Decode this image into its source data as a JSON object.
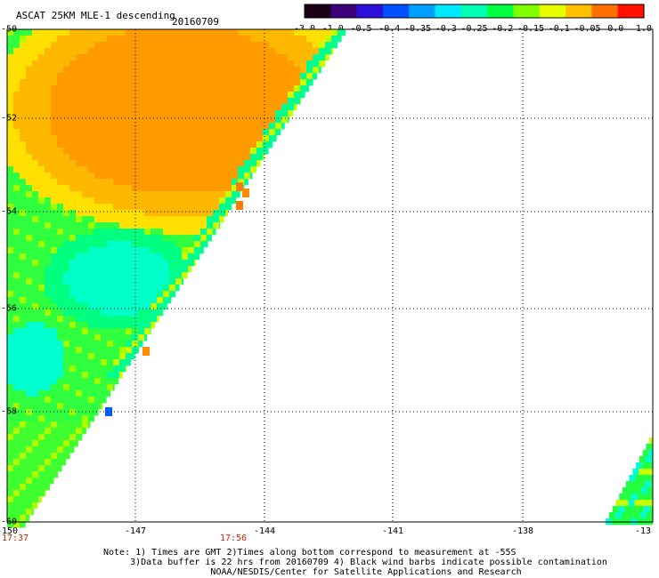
{
  "header": {
    "title": "ASCAT 25KM MLE-1 descending",
    "date": "20160709"
  },
  "colorbar": {
    "tick_labels": [
      "-3.0",
      "-1.0",
      "-0.5",
      "-0.4",
      "-0.35",
      "-0.3",
      "-0.25",
      "-0.2",
      "-0.15",
      "-0.1",
      "-0.05",
      "0.0",
      "1.0"
    ],
    "colors": [
      "#1a0015",
      "#3c007a",
      "#2a10d8",
      "#0050ff",
      "#00a0ff",
      "#00e8ff",
      "#00ffb0",
      "#00ff40",
      "#80ff00",
      "#e8ff00",
      "#ffc000",
      "#ff7000",
      "#ff1000"
    ]
  },
  "axes": {
    "lat_labels": [
      "-50",
      "-52",
      "-54",
      "-56",
      "-58",
      "-60"
    ],
    "lon_labels": [
      "-150",
      "-147",
      "-144",
      "-141",
      "-138",
      "-13"
    ]
  },
  "times": {
    "left": "17:37",
    "middle": "17:56"
  },
  "note": {
    "line1": "Note: 1) Times are GMT 2)Times along bottom correspond to measurement at -55S",
    "line2": "3)Data buffer is 22 hrs from 20160709 4) Black wind barbs indicate possible contamination",
    "line3": "NOAA/NESDIS/Center for Satellite Applications and Research"
  }
}
